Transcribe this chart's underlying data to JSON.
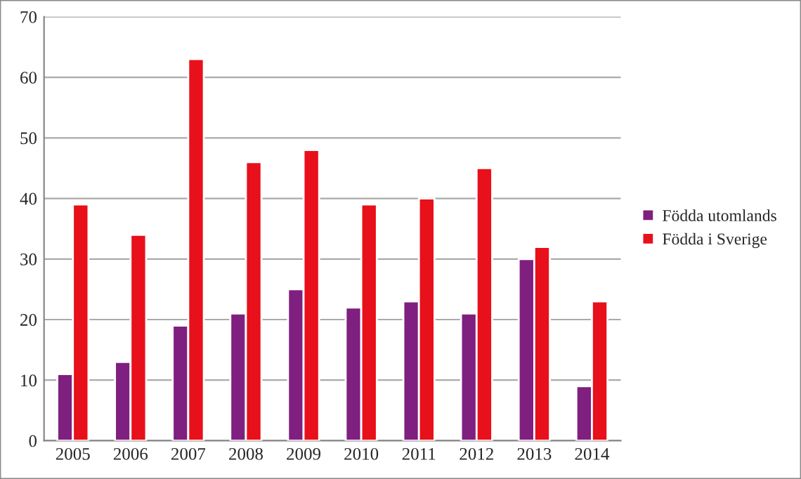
{
  "chart_data": {
    "type": "bar",
    "categories": [
      "2005",
      "2006",
      "2007",
      "2008",
      "2009",
      "2010",
      "2011",
      "2012",
      "2013",
      "2014"
    ],
    "series": [
      {
        "name": "Födda utomlands",
        "color": "#7f1f7f",
        "values": [
          11,
          13,
          19,
          21,
          25,
          22,
          23,
          21,
          30,
          9
        ]
      },
      {
        "name": "Födda i Sverige",
        "color": "#e8101a",
        "values": [
          39,
          34,
          63,
          46,
          48,
          39,
          40,
          45,
          32,
          23
        ]
      }
    ],
    "ylim": [
      0,
      70
    ],
    "yticks": [
      0,
      10,
      20,
      30,
      40,
      50,
      60,
      70
    ],
    "grid": "y",
    "legend": "right"
  }
}
